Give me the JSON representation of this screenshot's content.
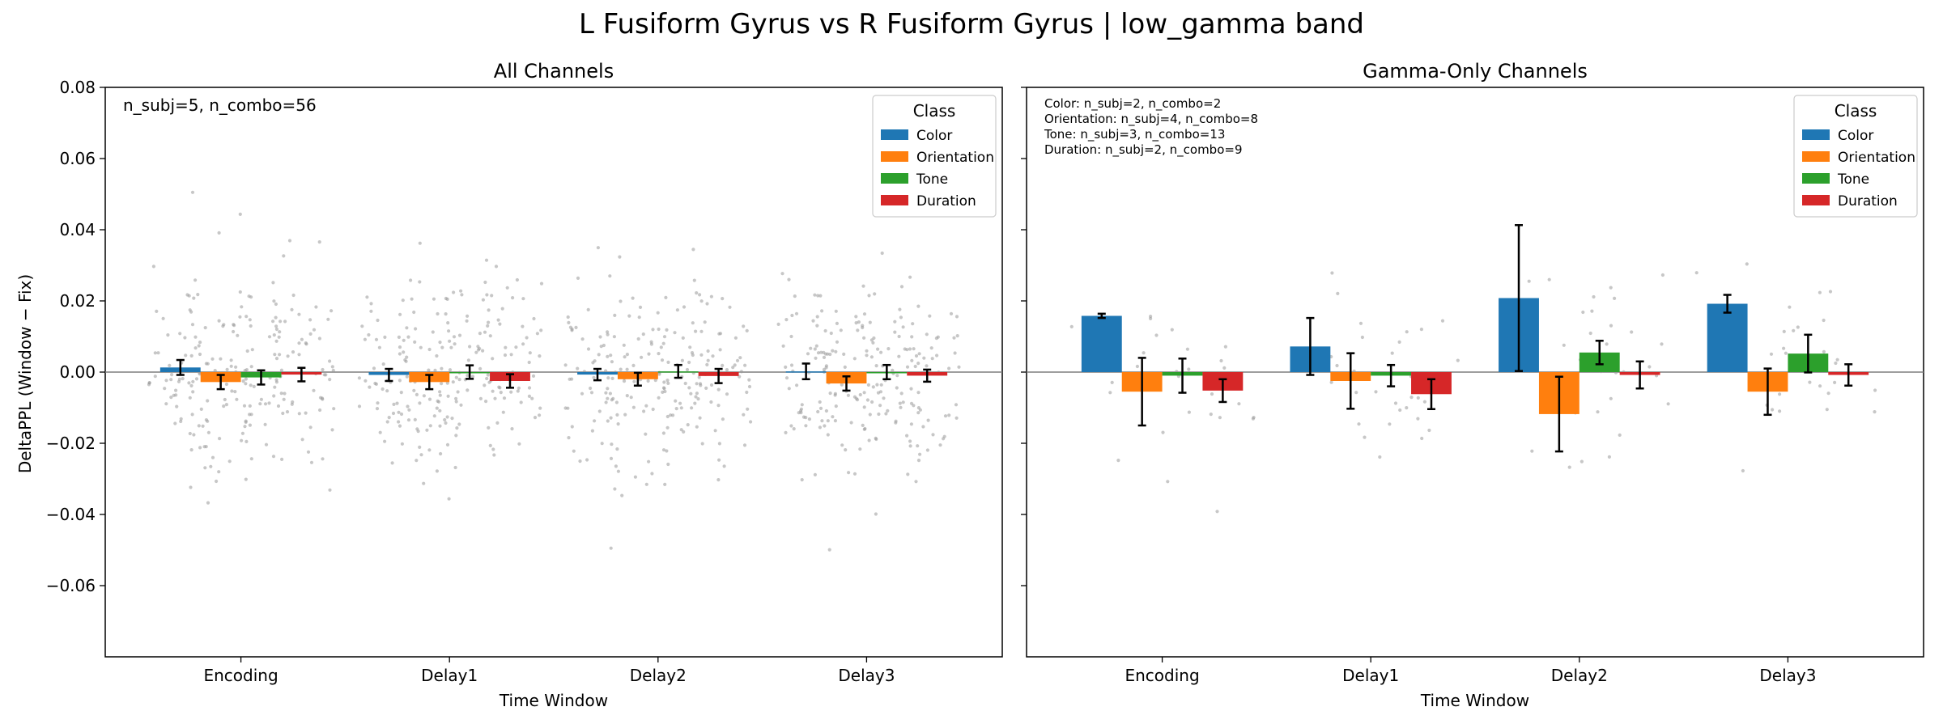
{
  "figure": {
    "title": "L Fusiform Gyrus vs R Fusiform Gyrus  |  low_gamma band"
  },
  "chart_data": [
    {
      "type": "bar",
      "title": "All Channels",
      "xlabel": "Time Window",
      "ylabel": "DeltaPPL (Window − Fix)",
      "ylim": [
        -0.08,
        0.08
      ],
      "yticks": [
        "0.08",
        "0.06",
        "0.04",
        "0.02",
        "0.00",
        "−0.02",
        "−0.04",
        "−0.06"
      ],
      "ytick_values": [
        0.08,
        0.06,
        0.04,
        0.02,
        0.0,
        -0.02,
        -0.04,
        -0.06
      ],
      "categories": [
        "Encoding",
        "Delay1",
        "Delay2",
        "Delay3"
      ],
      "legend_title": "Class",
      "legend_position": "top-right",
      "annotations": [
        "n_subj=5, n_combo=56"
      ],
      "series": [
        {
          "name": "Color",
          "color": "#1f77b4",
          "values": [
            0.0013,
            -0.0008,
            -0.0007,
            0.0002
          ],
          "errors": [
            0.0021,
            0.0017,
            0.0016,
            0.0022
          ]
        },
        {
          "name": "Orientation",
          "color": "#ff7f0e",
          "values": [
            -0.0028,
            -0.0028,
            -0.002,
            -0.0032
          ],
          "errors": [
            0.002,
            0.002,
            0.0018,
            0.002
          ]
        },
        {
          "name": "Tone",
          "color": "#2ca02c",
          "values": [
            -0.0015,
            0.0,
            0.0002,
            0.0
          ],
          "errors": [
            0.002,
            0.0019,
            0.0018,
            0.002
          ]
        },
        {
          "name": "Duration",
          "color": "#d62728",
          "values": [
            -0.0007,
            -0.0025,
            -0.0011,
            -0.001
          ],
          "errors": [
            0.0019,
            0.0019,
            0.002,
            0.0017
          ]
        }
      ],
      "points_per_group": 56,
      "points_spread": 0.014,
      "points_color": "#999999"
    },
    {
      "type": "bar",
      "title": "Gamma-Only Channels",
      "xlabel": "Time Window",
      "ylabel": "",
      "ylim": [
        -0.08,
        0.08
      ],
      "categories": [
        "Encoding",
        "Delay1",
        "Delay2",
        "Delay3"
      ],
      "legend_title": "Class",
      "legend_position": "top-right",
      "annotations": [
        "Color: n_subj=2, n_combo=2",
        "Orientation: n_subj=4, n_combo=8",
        "Tone: n_subj=3, n_combo=13",
        "Duration: n_subj=2, n_combo=9"
      ],
      "series": [
        {
          "name": "Color",
          "color": "#1f77b4",
          "values": [
            0.0158,
            0.0072,
            0.0208,
            0.0192
          ],
          "errors": [
            0.0006,
            0.008,
            0.0205,
            0.0025
          ]
        },
        {
          "name": "Orientation",
          "color": "#ff7f0e",
          "values": [
            -0.0055,
            -0.0025,
            -0.0118,
            -0.0055
          ],
          "errors": [
            0.0095,
            0.0078,
            0.0105,
            0.0065
          ]
        },
        {
          "name": "Tone",
          "color": "#2ca02c",
          "values": [
            -0.001,
            -0.001,
            0.0055,
            0.0052
          ],
          "errors": [
            0.0048,
            0.003,
            0.0033,
            0.0053
          ]
        },
        {
          "name": "Duration",
          "color": "#d62728",
          "values": [
            -0.0052,
            -0.0062,
            -0.0008,
            -0.0008
          ],
          "errors": [
            0.0032,
            0.0042,
            0.0038,
            0.003
          ]
        }
      ],
      "points_per_group": [
        2,
        8,
        13,
        9
      ],
      "points_spread": 0.012,
      "points_color": "#999999"
    }
  ]
}
